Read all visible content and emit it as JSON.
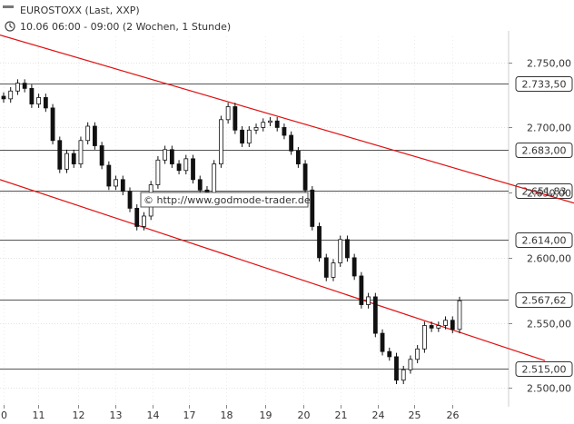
{
  "header": {
    "title": "EUROSTOXX (Last, XXP)",
    "subtitle": "10.06 06:00 - 09:00 (2 Wochen, 1 Stunde)",
    "clock_icon": "clock-icon"
  },
  "watermark": {
    "text": "© http://www.godmode-trader.de"
  },
  "chart_data": {
    "type": "candlestick",
    "x_tick_labels": [
      "0",
      "11",
      "12",
      "13",
      "14",
      "17",
      "18",
      "19",
      "20",
      "21",
      "24",
      "25",
      "26"
    ],
    "y_tick_labels": [
      "2.750,00",
      "2.700,00",
      "2.650,00",
      "2.600,00",
      "2.550,00",
      "2.500,00"
    ],
    "y_ticks": [
      2750,
      2700,
      2650,
      2600,
      2550,
      2500
    ],
    "ylim": [
      2487,
      2770
    ],
    "grid": true,
    "levels": [
      {
        "value": 2733.5,
        "label": "2.733,50"
      },
      {
        "value": 2683.0,
        "label": "2.683,00"
      },
      {
        "value": 2651.83,
        "label": "2.651,83"
      },
      {
        "value": 2614.0,
        "label": "2.614,00"
      },
      {
        "value": 2567.62,
        "label": "2.567,62"
      },
      {
        "value": 2515.0,
        "label": "2.515,00"
      }
    ],
    "trend_lines": [
      {
        "from": [
          0,
          2771
        ],
        "to": [
          66,
          2642
        ],
        "color": "#e01010"
      },
      {
        "from": [
          0,
          2660
        ],
        "to": [
          66,
          2521
        ],
        "color": "#e01010"
      }
    ],
    "closes": [
      2722,
      2728,
      2734,
      2730,
      2718,
      2723,
      2715,
      2690,
      2668,
      2680,
      2672,
      2690,
      2701,
      2686,
      2671,
      2655,
      2660,
      2651,
      2638,
      2624,
      2632,
      2656,
      2675,
      2683,
      2672,
      2667,
      2676,
      2660,
      2652,
      2648,
      2672,
      2706,
      2716,
      2698,
      2688,
      2698,
      2700,
      2704,
      2705,
      2700,
      2694,
      2682,
      2672,
      2652,
      2624,
      2600,
      2585,
      2596,
      2614,
      2600,
      2586,
      2564,
      2570,
      2542,
      2528,
      2524,
      2506,
      2514,
      2522,
      2530,
      2548,
      2546,
      2548,
      2552,
      2545,
      2567
    ]
  }
}
